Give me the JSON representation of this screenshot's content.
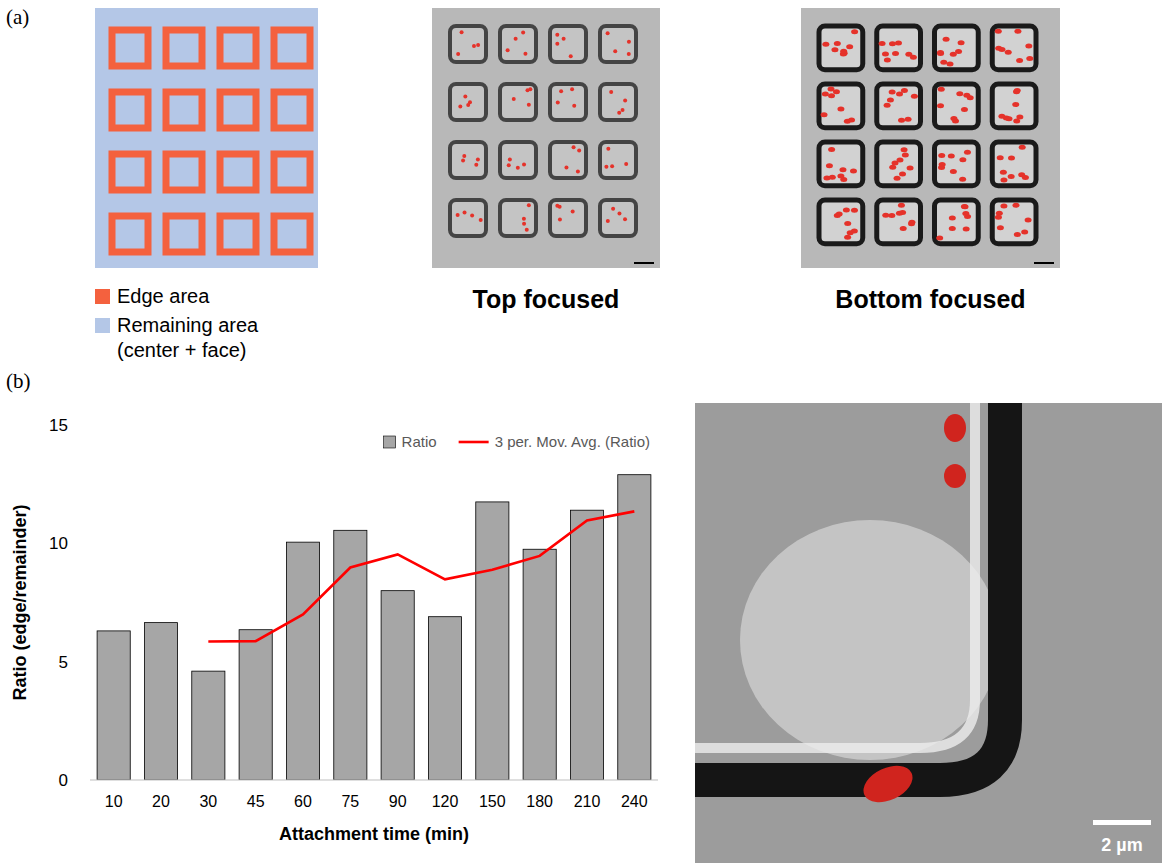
{
  "chart_data": {
    "type": "bar",
    "categories": [
      "10",
      "20",
      "30",
      "45",
      "60",
      "75",
      "90",
      "120",
      "150",
      "180",
      "210",
      "240"
    ],
    "series": [
      {
        "name": "Ratio",
        "type": "bar",
        "color": "#a6a6a6",
        "values": [
          6.3,
          6.65,
          4.6,
          6.35,
          10.05,
          10.55,
          8.0,
          6.9,
          11.75,
          9.75,
          11.4,
          12.9
        ]
      },
      {
        "name": "3 per. Mov. Avg. (Ratio)",
        "type": "line",
        "color": "#ff0000",
        "line_style": "solid",
        "values": [
          null,
          null,
          5.85,
          5.87,
          7.0,
          8.98,
          9.53,
          8.48,
          8.88,
          9.47,
          10.97,
          11.35
        ]
      }
    ],
    "x_label": "Attachment time (min)",
    "y_label": "Ratio (edge/remainder)",
    "ylim": [
      0,
      15
    ],
    "yticks": [
      0,
      5,
      10,
      15
    ],
    "grid": false,
    "legend": "top-right"
  },
  "figure": {
    "panel_labels": [
      "(a)",
      "(b)"
    ],
    "schematic_legend": [
      {
        "label": [
          "Edge area"
        ],
        "color": "#f4613e"
      },
      {
        "label": [
          "Remaining area",
          "(center + face)"
        ],
        "color": "#b4c7e7"
      }
    ],
    "image_captions": [
      "Top focused",
      "Bottom focused"
    ],
    "scale_bar": "2 µm"
  }
}
